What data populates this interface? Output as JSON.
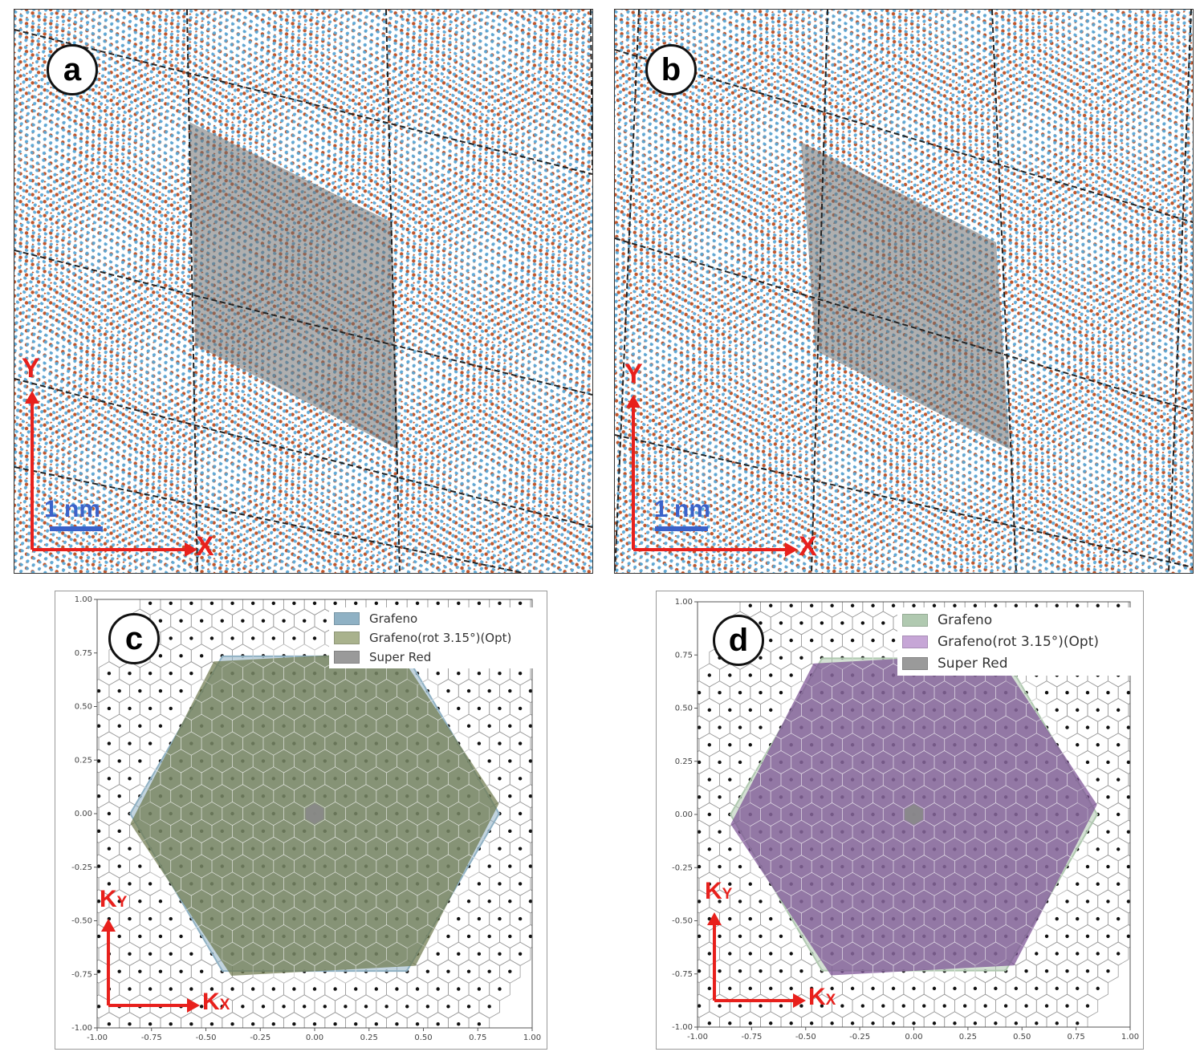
{
  "panels": {
    "a": {
      "label": "a",
      "axis_x": "X",
      "axis_y": "Y",
      "scale": "1 nm"
    },
    "b": {
      "label": "b",
      "axis_x": "X",
      "axis_y": "Y",
      "scale": "1 nm"
    },
    "c": {
      "label": "c",
      "axis_x_main": "K",
      "axis_x_sub": "X",
      "axis_y_main": "K",
      "axis_y_sub": "Y",
      "legend": [
        {
          "label": "Grafeno",
          "color": "#8fb1c4"
        },
        {
          "label": "Grafeno(rot 3.15°)(Opt)",
          "color": "#a9b28d"
        },
        {
          "label": "Super Red",
          "color": "#9a9a9a"
        }
      ],
      "fill_color": "#6f7a4e",
      "outline_color": "#8fb1c4"
    },
    "d": {
      "label": "d",
      "axis_x_main": "K",
      "axis_x_sub": "X",
      "axis_y_main": "K",
      "axis_y_sub": "Y",
      "legend": [
        {
          "label": "Grafeno",
          "color": "#b0c9b0"
        },
        {
          "label": "Grafeno(rot 3.15°)(Opt)",
          "color": "#c6a6d6"
        },
        {
          "label": "Super Red",
          "color": "#9a9a9a"
        }
      ],
      "fill_color": "#7a4f93",
      "outline_color": "#b0c9b0"
    }
  },
  "tick_labels": [
    "-1.00",
    "-0.75",
    "-0.50",
    "-0.25",
    "0.00",
    "0.25",
    "0.50",
    "0.75",
    "1.00"
  ],
  "colors": {
    "atom_blue": "#5aa7d6",
    "atom_orange": "#c0552a",
    "arrow_red": "#e8201c",
    "scale_blue": "#3b62c9",
    "moire_cell": "#6d6d6d"
  }
}
